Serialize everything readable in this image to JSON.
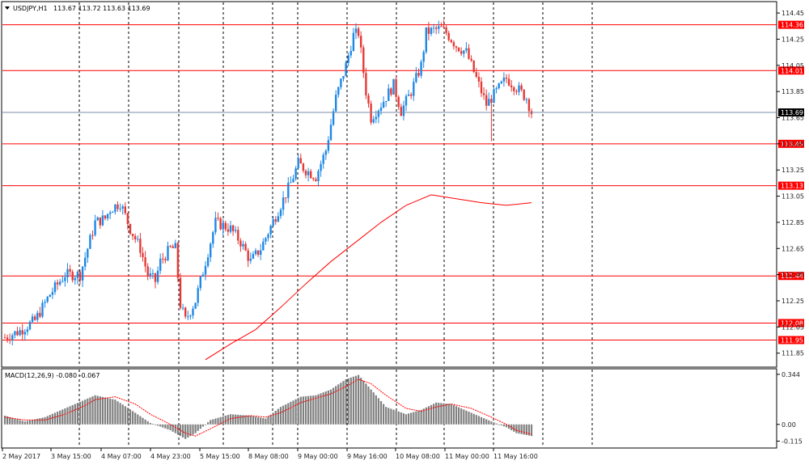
{
  "header": {
    "symbol": "USDJPY,H1",
    "ohlc": "113.67 113.72 113.63 113.69"
  },
  "macd_header": {
    "label": "MACD(12,26,9) -0.080 -0.067"
  },
  "colors": {
    "bull": "#1e88e5",
    "bear": "#e53935",
    "level": "#ff0000",
    "ma": "#ff0000",
    "histogram": "#808080",
    "signal": "#ff0000",
    "current_price": "#000000"
  },
  "chart_data": [
    {
      "type": "candlestick",
      "symbol": "USDJPY",
      "timeframe": "H1",
      "ylim": [
        111.78,
        114.5
      ],
      "y_ticks": [
        "114.45",
        "114.25",
        "114.05",
        "113.85",
        "113.65",
        "113.45",
        "113.25",
        "113.05",
        "112.85",
        "112.65",
        "112.45",
        "112.25",
        "112.05",
        "111.85"
      ],
      "x_ticks": [
        "2 May 2017",
        "3 May 15:00",
        "4 May 07:00",
        "4 May 23:00",
        "5 May 15:00",
        "8 May 08:00",
        "9 May 00:00",
        "9 May 16:00",
        "10 May 08:00",
        "11 May 00:00",
        "11 May 16:00"
      ],
      "levels": [
        "114.36",
        "114.01",
        "113.45",
        "113.13",
        "112.44",
        "112.08",
        "111.95"
      ],
      "current_price": "113.69",
      "grid": "vertical-dashed",
      "close_path": [
        [
          0,
          111.97
        ],
        [
          6,
          112.02
        ],
        [
          12,
          112.1
        ],
        [
          18,
          112.3
        ],
        [
          24,
          112.45
        ],
        [
          30,
          112.45
        ],
        [
          36,
          112.85
        ],
        [
          40,
          112.88
        ],
        [
          42,
          112.95
        ],
        [
          46,
          113.0
        ],
        [
          50,
          112.8
        ],
        [
          54,
          112.65
        ],
        [
          57,
          112.45
        ],
        [
          60,
          112.4
        ],
        [
          62,
          112.55
        ],
        [
          66,
          112.65
        ],
        [
          68,
          112.65
        ],
        [
          70,
          112.22
        ],
        [
          72,
          112.1
        ],
        [
          76,
          112.25
        ],
        [
          80,
          112.55
        ],
        [
          84,
          112.85
        ],
        [
          90,
          112.8
        ],
        [
          94,
          112.7
        ],
        [
          98,
          112.55
        ],
        [
          102,
          112.65
        ],
        [
          108,
          112.9
        ],
        [
          114,
          113.15
        ],
        [
          117,
          113.3
        ],
        [
          120,
          113.25
        ],
        [
          124,
          113.2
        ],
        [
          128,
          113.4
        ],
        [
          132,
          113.8
        ],
        [
          136,
          114.05
        ],
        [
          139,
          114.28
        ],
        [
          141,
          114.3
        ],
        [
          144,
          113.85
        ],
        [
          146,
          113.65
        ],
        [
          150,
          113.75
        ],
        [
          155,
          113.9
        ],
        [
          158,
          113.7
        ],
        [
          162,
          113.85
        ],
        [
          166,
          114.05
        ],
        [
          168,
          114.3
        ],
        [
          171,
          114.32
        ],
        [
          174,
          114.33
        ],
        [
          176,
          114.3
        ],
        [
          180,
          114.2
        ],
        [
          184,
          114.15
        ],
        [
          188,
          113.95
        ],
        [
          192,
          113.75
        ],
        [
          196,
          113.85
        ],
        [
          200,
          113.95
        ],
        [
          204,
          113.88
        ],
        [
          208,
          113.8
        ],
        [
          210,
          113.69
        ]
      ],
      "ma": [
        [
          80,
          111.8
        ],
        [
          90,
          111.92
        ],
        [
          100,
          112.03
        ],
        [
          110,
          112.2
        ],
        [
          120,
          112.38
        ],
        [
          130,
          112.55
        ],
        [
          140,
          112.7
        ],
        [
          150,
          112.85
        ],
        [
          160,
          112.98
        ],
        [
          170,
          113.06
        ],
        [
          180,
          113.03
        ],
        [
          190,
          113.0
        ],
        [
          200,
          112.98
        ],
        [
          210,
          113.0
        ]
      ]
    },
    {
      "type": "bar",
      "name": "MACD(12,26,9)",
      "ylim": [
        -0.14,
        0.36
      ],
      "y_ticks": [
        "0.344",
        "0.00",
        "-0.115"
      ],
      "macd_value": "-0.080",
      "signal_value": "-0.067",
      "macd_path": [
        [
          0,
          0.06
        ],
        [
          8,
          0.02
        ],
        [
          16,
          0.05
        ],
        [
          24,
          0.11
        ],
        [
          32,
          0.17
        ],
        [
          36,
          0.2
        ],
        [
          44,
          0.17
        ],
        [
          52,
          0.08
        ],
        [
          58,
          0.01
        ],
        [
          66,
          -0.04
        ],
        [
          72,
          -0.1
        ],
        [
          76,
          -0.06
        ],
        [
          82,
          0.03
        ],
        [
          90,
          0.07
        ],
        [
          98,
          0.06
        ],
        [
          104,
          0.04
        ],
        [
          110,
          0.12
        ],
        [
          118,
          0.19
        ],
        [
          124,
          0.2
        ],
        [
          130,
          0.24
        ],
        [
          136,
          0.31
        ],
        [
          141,
          0.34
        ],
        [
          146,
          0.24
        ],
        [
          152,
          0.12
        ],
        [
          160,
          0.07
        ],
        [
          166,
          0.1
        ],
        [
          172,
          0.15
        ],
        [
          178,
          0.14
        ],
        [
          186,
          0.08
        ],
        [
          194,
          0.02
        ],
        [
          200,
          -0.02
        ],
        [
          204,
          -0.06
        ],
        [
          210,
          -0.08
        ]
      ],
      "signal_path": [
        [
          0,
          0.05
        ],
        [
          8,
          0.03
        ],
        [
          16,
          0.03
        ],
        [
          24,
          0.07
        ],
        [
          32,
          0.13
        ],
        [
          36,
          0.17
        ],
        [
          44,
          0.19
        ],
        [
          52,
          0.14
        ],
        [
          58,
          0.07
        ],
        [
          66,
          0.0
        ],
        [
          72,
          -0.06
        ],
        [
          76,
          -0.08
        ],
        [
          82,
          -0.03
        ],
        [
          90,
          0.04
        ],
        [
          98,
          0.06
        ],
        [
          104,
          0.05
        ],
        [
          110,
          0.08
        ],
        [
          118,
          0.15
        ],
        [
          124,
          0.18
        ],
        [
          130,
          0.21
        ],
        [
          136,
          0.26
        ],
        [
          141,
          0.31
        ],
        [
          146,
          0.28
        ],
        [
          152,
          0.2
        ],
        [
          160,
          0.11
        ],
        [
          166,
          0.09
        ],
        [
          172,
          0.12
        ],
        [
          178,
          0.14
        ],
        [
          186,
          0.11
        ],
        [
          194,
          0.05
        ],
        [
          200,
          0.0
        ],
        [
          204,
          -0.04
        ],
        [
          210,
          -0.067
        ]
      ]
    }
  ]
}
